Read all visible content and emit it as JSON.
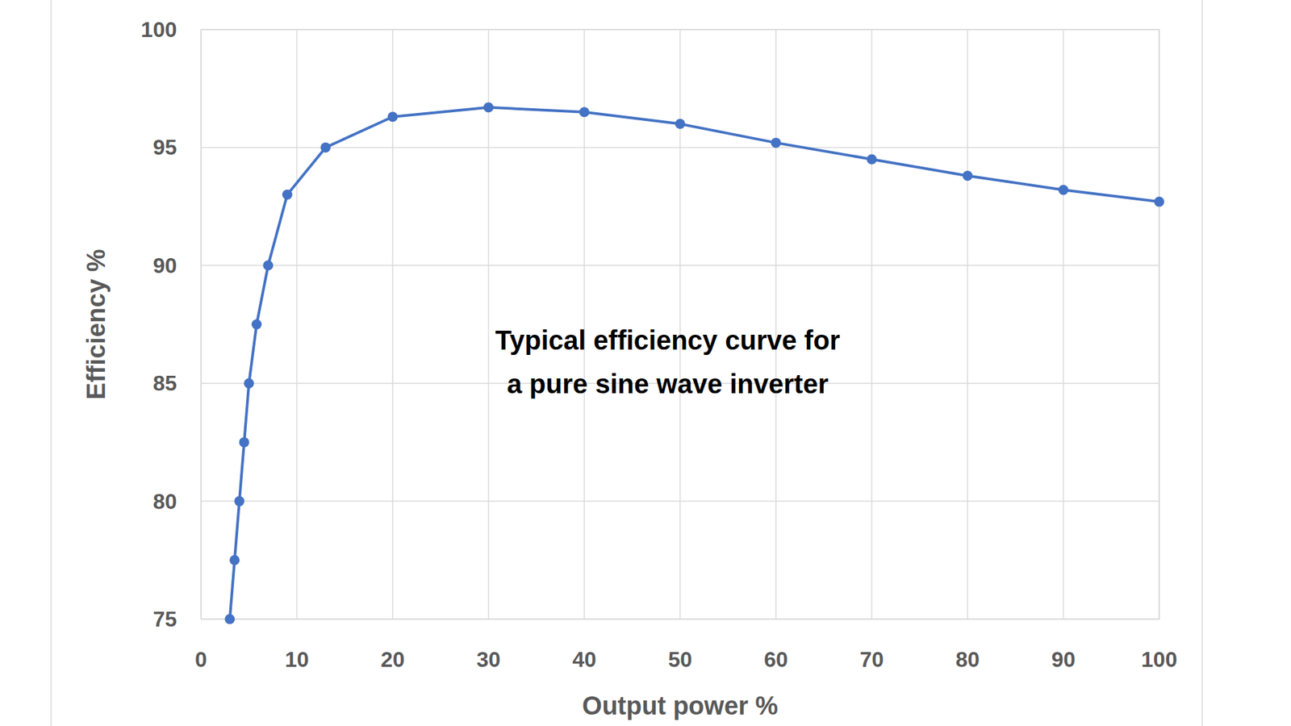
{
  "chart_data": {
    "type": "line",
    "x_label": "Output power %",
    "y_label": "Efficiency %",
    "annotations": [
      "Typical efficiency curve for",
      "a pure sine wave inverter"
    ],
    "x": [
      3,
      3.5,
      4,
      4.5,
      5,
      5.8,
      7,
      9,
      13,
      20,
      30,
      40,
      50,
      60,
      70,
      80,
      90,
      100
    ],
    "values": [
      75,
      77.5,
      80,
      82.5,
      85,
      87.5,
      90,
      93,
      95,
      96.3,
      96.7,
      96.5,
      96,
      95.2,
      94.5,
      93.8,
      93.2,
      92.7
    ],
    "color": "#4472c4",
    "marker": "circle",
    "line_style": "solid",
    "xlim": [
      0,
      100
    ],
    "xticks": [
      0,
      10,
      20,
      30,
      40,
      50,
      60,
      70,
      80,
      90,
      100
    ],
    "ylim": [
      75,
      100
    ],
    "yticks": [
      75,
      80,
      85,
      90,
      95,
      100
    ],
    "grid": true
  }
}
